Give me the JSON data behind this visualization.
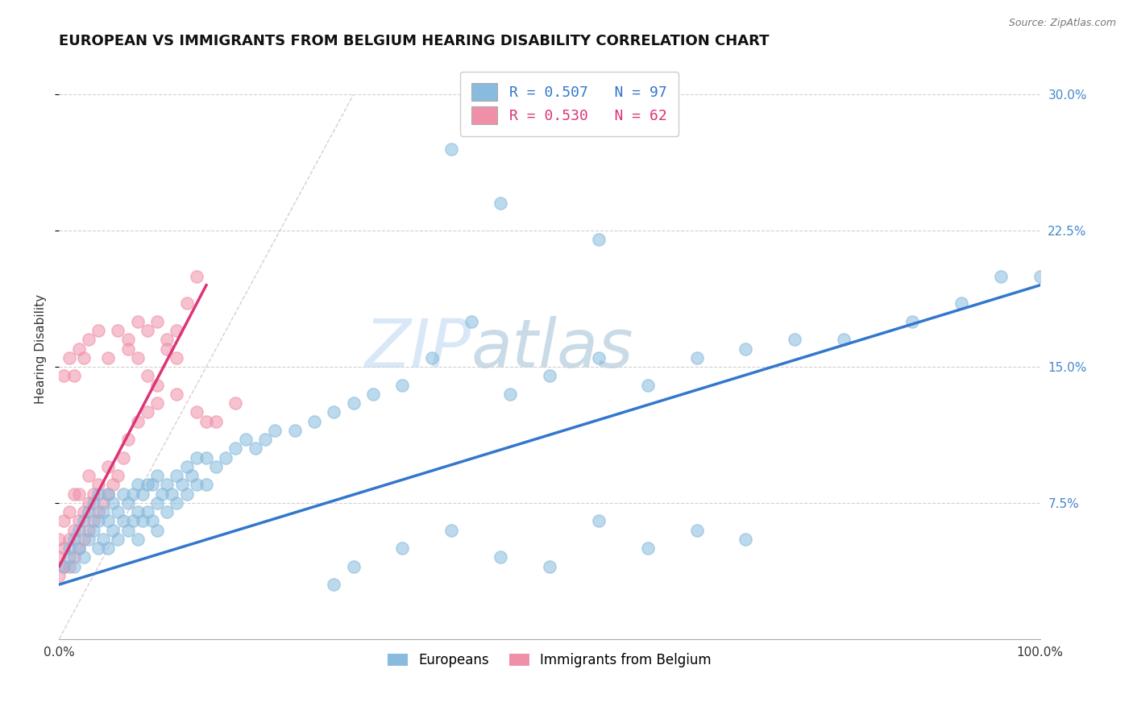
{
  "title": "EUROPEAN VS IMMIGRANTS FROM BELGIUM HEARING DISABILITY CORRELATION CHART",
  "source_text": "Source: ZipAtlas.com",
  "ylabel": "Hearing Disability",
  "xlabel": "",
  "y_tick_labels": [
    "7.5%",
    "15.0%",
    "22.5%",
    "30.0%"
  ],
  "y_tick_positions": [
    0.075,
    0.15,
    0.225,
    0.3
  ],
  "x_tick_labels": [
    "0.0%",
    "100.0%"
  ],
  "x_tick_positions": [
    0.0,
    1.0
  ],
  "legend_label1": "R = 0.507   N = 97",
  "legend_label2": "R = 0.530   N = 62",
  "legend_bottom1": "Europeans",
  "legend_bottom2": "Immigrants from Belgium",
  "color_blue": "#88bbdd",
  "color_pink": "#f090a8",
  "color_blue_line": "#3377cc",
  "color_pink_line": "#dd3377",
  "watermark_zip": "ZIP",
  "watermark_atlas": "atlas",
  "xlim": [
    0.0,
    1.0
  ],
  "ylim": [
    0.0,
    0.32
  ],
  "blue_scatter_x": [
    0.005,
    0.01,
    0.01,
    0.015,
    0.015,
    0.02,
    0.02,
    0.025,
    0.025,
    0.03,
    0.03,
    0.035,
    0.035,
    0.04,
    0.04,
    0.04,
    0.045,
    0.045,
    0.05,
    0.05,
    0.05,
    0.055,
    0.055,
    0.06,
    0.06,
    0.065,
    0.065,
    0.07,
    0.07,
    0.075,
    0.075,
    0.08,
    0.08,
    0.08,
    0.085,
    0.085,
    0.09,
    0.09,
    0.095,
    0.095,
    0.1,
    0.1,
    0.1,
    0.105,
    0.11,
    0.11,
    0.115,
    0.12,
    0.12,
    0.125,
    0.13,
    0.13,
    0.135,
    0.14,
    0.14,
    0.15,
    0.15,
    0.16,
    0.17,
    0.18,
    0.19,
    0.2,
    0.21,
    0.22,
    0.24,
    0.26,
    0.28,
    0.3,
    0.32,
    0.35,
    0.38,
    0.42,
    0.46,
    0.5,
    0.55,
    0.6,
    0.65,
    0.7,
    0.75,
    0.8,
    0.87,
    0.92,
    0.96,
    1.0,
    0.28,
    0.3,
    0.35,
    0.4,
    0.45,
    0.5,
    0.55,
    0.6,
    0.65,
    0.7,
    0.4,
    0.45,
    0.55
  ],
  "blue_scatter_y": [
    0.04,
    0.045,
    0.05,
    0.04,
    0.055,
    0.05,
    0.06,
    0.045,
    0.065,
    0.055,
    0.07,
    0.06,
    0.075,
    0.05,
    0.065,
    0.08,
    0.055,
    0.07,
    0.05,
    0.065,
    0.08,
    0.06,
    0.075,
    0.055,
    0.07,
    0.065,
    0.08,
    0.06,
    0.075,
    0.065,
    0.08,
    0.055,
    0.07,
    0.085,
    0.065,
    0.08,
    0.07,
    0.085,
    0.065,
    0.085,
    0.06,
    0.075,
    0.09,
    0.08,
    0.07,
    0.085,
    0.08,
    0.075,
    0.09,
    0.085,
    0.08,
    0.095,
    0.09,
    0.085,
    0.1,
    0.085,
    0.1,
    0.095,
    0.1,
    0.105,
    0.11,
    0.105,
    0.11,
    0.115,
    0.115,
    0.12,
    0.125,
    0.13,
    0.135,
    0.14,
    0.155,
    0.175,
    0.135,
    0.145,
    0.155,
    0.14,
    0.155,
    0.16,
    0.165,
    0.165,
    0.175,
    0.185,
    0.2,
    0.2,
    0.03,
    0.04,
    0.05,
    0.06,
    0.045,
    0.04,
    0.065,
    0.05,
    0.06,
    0.055,
    0.27,
    0.24,
    0.22
  ],
  "pink_scatter_x": [
    0.0,
    0.0,
    0.0,
    0.005,
    0.005,
    0.005,
    0.01,
    0.01,
    0.01,
    0.015,
    0.015,
    0.015,
    0.02,
    0.02,
    0.02,
    0.025,
    0.025,
    0.03,
    0.03,
    0.03,
    0.035,
    0.035,
    0.04,
    0.04,
    0.045,
    0.05,
    0.05,
    0.055,
    0.06,
    0.065,
    0.07,
    0.08,
    0.09,
    0.1,
    0.11,
    0.12,
    0.13,
    0.14,
    0.005,
    0.01,
    0.015,
    0.02,
    0.025,
    0.03,
    0.04,
    0.05,
    0.06,
    0.07,
    0.08,
    0.09,
    0.1,
    0.11,
    0.12,
    0.14,
    0.16,
    0.18,
    0.07,
    0.08,
    0.09,
    0.1,
    0.12,
    0.15
  ],
  "pink_scatter_y": [
    0.035,
    0.045,
    0.055,
    0.04,
    0.05,
    0.065,
    0.04,
    0.055,
    0.07,
    0.045,
    0.06,
    0.08,
    0.05,
    0.065,
    0.08,
    0.055,
    0.07,
    0.06,
    0.075,
    0.09,
    0.065,
    0.08,
    0.07,
    0.085,
    0.075,
    0.08,
    0.095,
    0.085,
    0.09,
    0.1,
    0.11,
    0.12,
    0.125,
    0.13,
    0.16,
    0.17,
    0.185,
    0.2,
    0.145,
    0.155,
    0.145,
    0.16,
    0.155,
    0.165,
    0.17,
    0.155,
    0.17,
    0.16,
    0.175,
    0.17,
    0.175,
    0.165,
    0.155,
    0.125,
    0.12,
    0.13,
    0.165,
    0.155,
    0.145,
    0.14,
    0.135,
    0.12
  ],
  "blue_line_x": [
    0.0,
    1.0
  ],
  "blue_line_y": [
    0.03,
    0.195
  ],
  "pink_line_x": [
    0.0,
    0.15
  ],
  "pink_line_y": [
    0.04,
    0.195
  ],
  "diag_line_x": [
    0.0,
    0.3
  ],
  "diag_line_y": [
    0.0,
    0.3
  ],
  "grid_color": "#cccccc",
  "background_color": "#ffffff",
  "title_fontsize": 13,
  "axis_label_fontsize": 11,
  "tick_label_fontsize": 11
}
